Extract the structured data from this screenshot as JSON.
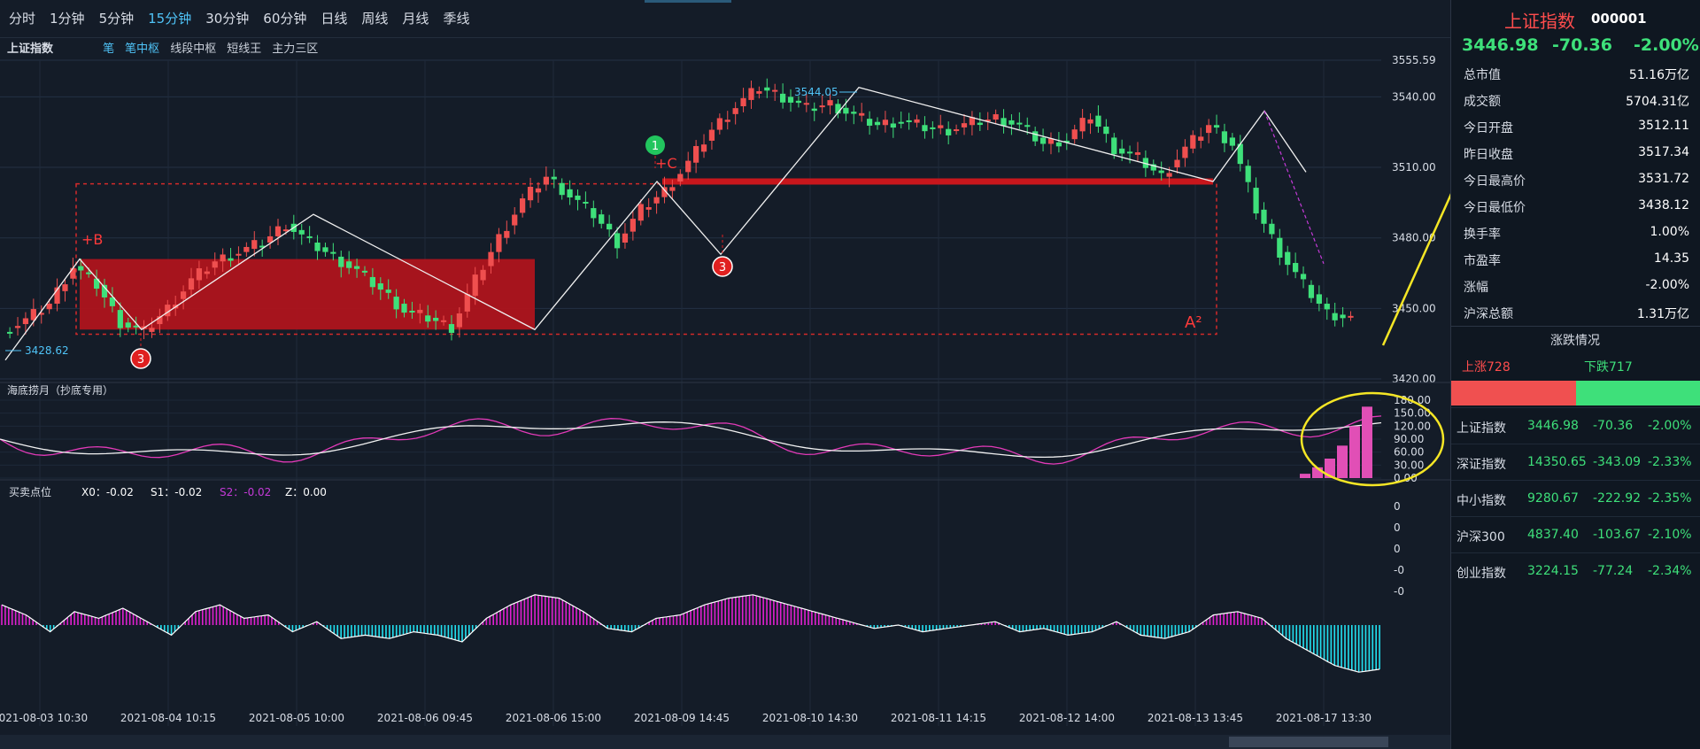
{
  "toolbar": {
    "timeframes": [
      "分时",
      "1分钟",
      "5分钟",
      "15分钟",
      "30分钟",
      "60分钟",
      "日线",
      "周线",
      "月线",
      "季线"
    ],
    "active": "15分钟"
  },
  "subbar": {
    "index_label": "上证指数",
    "tools": [
      "笔",
      "笔中枢",
      "线段中枢",
      "短线王",
      "主力三区"
    ]
  },
  "indicator1": {
    "title": "海底捞月（抄底专用）"
  },
  "indicator2": {
    "title": "买卖点位",
    "x0": "X0：-0.02",
    "s1": "S1：-0.02",
    "s2": "S2：-0.02",
    "z": "Z：0.00"
  },
  "annotations": {
    "high_label": "3544.05",
    "low_label": "3428.62",
    "plus_b": "+B",
    "plus_c": "+C",
    "a2": "A²",
    "circle_1": "1",
    "circle_3a": "3",
    "circle_3b": "3"
  },
  "right_panel": {
    "name": "上证指数",
    "code": "000001",
    "price": "3446.98",
    "change": "-70.36",
    "change_pct": "-2.00%",
    "stats": [
      {
        "k": "总市值",
        "v": "51.16万亿"
      },
      {
        "k": "成交额",
        "v": "5704.31亿"
      },
      {
        "k": "今日开盘",
        "v": "3512.11"
      },
      {
        "k": "昨日收盘",
        "v": "3517.34"
      },
      {
        "k": "今日最高价",
        "v": "3531.72"
      },
      {
        "k": "今日最低价",
        "v": "3438.12"
      },
      {
        "k": "换手率",
        "v": "1.00%"
      },
      {
        "k": "市盈率",
        "v": "14.35"
      },
      {
        "k": "涨幅",
        "v": "-2.00%"
      },
      {
        "k": "沪深总额",
        "v": "1.31万亿"
      }
    ],
    "breadth_title": "涨跌情况",
    "up": "上涨728",
    "down": "下跌717",
    "indices": [
      {
        "name": "上证指数",
        "price": "3446.98",
        "chg": "-70.36",
        "pct": "-2.00%"
      },
      {
        "name": "深证指数",
        "price": "14350.65",
        "chg": "-343.09",
        "pct": "-2.33%"
      },
      {
        "name": "中小指数",
        "price": "9280.67",
        "chg": "-222.92",
        "pct": "-2.35%"
      },
      {
        "name": "沪深300",
        "price": "4837.40",
        "chg": "-103.67",
        "pct": "-2.10%"
      },
      {
        "name": "创业指数",
        "price": "3224.15",
        "chg": "-77.24",
        "pct": "-2.34%"
      }
    ]
  },
  "chart_data": {
    "type": "candlestick",
    "title": "上证指数",
    "y_ticks": [
      3555.59,
      3540.0,
      3510.0,
      3480.0,
      3450.0,
      3420.0
    ],
    "ylim": [
      3420,
      3555.59
    ],
    "x_ticks": [
      "2021-08-03 10:30",
      "2021-08-04 10:15",
      "2021-08-05 10:00",
      "2021-08-06 09:45",
      "2021-08-06 15:00",
      "2021-08-09 14:45",
      "2021-08-10 14:30",
      "2021-08-11 14:15",
      "2021-08-12 14:00",
      "2021-08-13 13:45",
      "2021-08-17 13:30"
    ],
    "close_path": [
      3440,
      3445,
      3452,
      3468,
      3460,
      3444,
      3440,
      3450,
      3462,
      3470,
      3474,
      3478,
      3486,
      3478,
      3472,
      3466,
      3458,
      3449,
      3446,
      3442,
      3462,
      3480,
      3496,
      3506,
      3498,
      3490,
      3478,
      3492,
      3500,
      3512,
      3526,
      3536,
      3544,
      3540,
      3535,
      3537,
      3532,
      3528,
      3530,
      3527,
      3526,
      3529,
      3531,
      3528,
      3520,
      3522,
      3532,
      3518,
      3514,
      3506,
      3518,
      3528,
      3520,
      3492,
      3474,
      3460,
      3448,
      3446
    ],
    "high": 3544.05,
    "low": 3428.62,
    "indicator1_ticks": [
      "180.00",
      "150.00",
      "120.00",
      "90.00",
      "60.00",
      "30.00",
      "0.00"
    ],
    "indicator1_bars": [
      0,
      0,
      0,
      0,
      0,
      0,
      0,
      0,
      0,
      0,
      0,
      0,
      0,
      0,
      0,
      0,
      0,
      0,
      0,
      0,
      0,
      0,
      0,
      0,
      0,
      0,
      0,
      0,
      0,
      0,
      0,
      0,
      0,
      0,
      0,
      0,
      0,
      0,
      0,
      0,
      0,
      0,
      0,
      0,
      0,
      0,
      0,
      0,
      0,
      0,
      0,
      0,
      10,
      25,
      45,
      75,
      120,
      165
    ],
    "indicator2_ticks": [
      "0",
      "0",
      "0",
      "-0",
      "-0"
    ],
    "indicator2_hist": [
      0.6,
      0.3,
      -0.2,
      0.4,
      0.2,
      0.5,
      0.1,
      -0.3,
      0.4,
      0.6,
      0.2,
      0.3,
      -0.2,
      0.1,
      -0.4,
      -0.3,
      -0.4,
      -0.2,
      -0.3,
      -0.5,
      0.2,
      0.6,
      0.9,
      0.8,
      0.4,
      -0.1,
      -0.2,
      0.2,
      0.3,
      0.6,
      0.8,
      0.9,
      0.7,
      0.5,
      0.3,
      0.1,
      -0.1,
      0.0,
      -0.2,
      -0.1,
      0.0,
      0.1,
      -0.2,
      -0.1,
      -0.3,
      -0.2,
      0.1,
      -0.3,
      -0.4,
      -0.2,
      0.3,
      0.4,
      0.2,
      -0.4,
      -0.8,
      -1.2,
      -1.4,
      -1.3
    ]
  }
}
